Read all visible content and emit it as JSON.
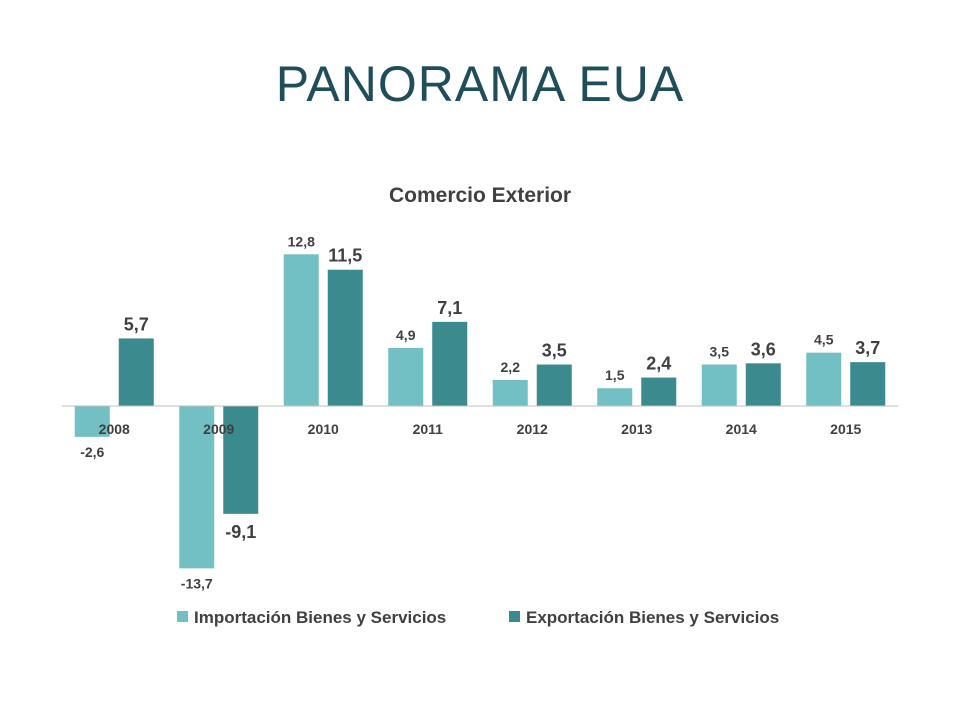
{
  "slide": {
    "title": "PANORAMA EUA"
  },
  "chart_data": {
    "type": "bar",
    "title": "Comercio Exterior",
    "categories": [
      "2008",
      "2009",
      "2010",
      "2011",
      "2012",
      "2013",
      "2014",
      "2015"
    ],
    "series": [
      {
        "name": "Importación Bienes y Servicios",
        "color": "#72bfc4",
        "values": [
          -2.6,
          -13.7,
          12.8,
          4.9,
          2.2,
          1.5,
          3.5,
          4.5
        ],
        "labels": [
          "-2,6",
          "-13,7",
          "12,8",
          "4,9",
          "2,2",
          "1,5",
          "3,5",
          "4,5"
        ]
      },
      {
        "name": "Exportación Bienes y Servicios",
        "color": "#3a8a8e",
        "values": [
          5.7,
          -9.1,
          11.5,
          7.1,
          3.5,
          2.4,
          3.6,
          3.7
        ],
        "labels": [
          "5,7",
          "-9,1",
          "11,5",
          "7,1",
          "3,5",
          "2,4",
          "3,6",
          "3,7"
        ]
      }
    ],
    "xlabel": "",
    "ylabel": "",
    "ylim": [
      -14,
      13
    ],
    "grid": false,
    "legend": "bottom",
    "axis_color": "#bfbfbf"
  }
}
